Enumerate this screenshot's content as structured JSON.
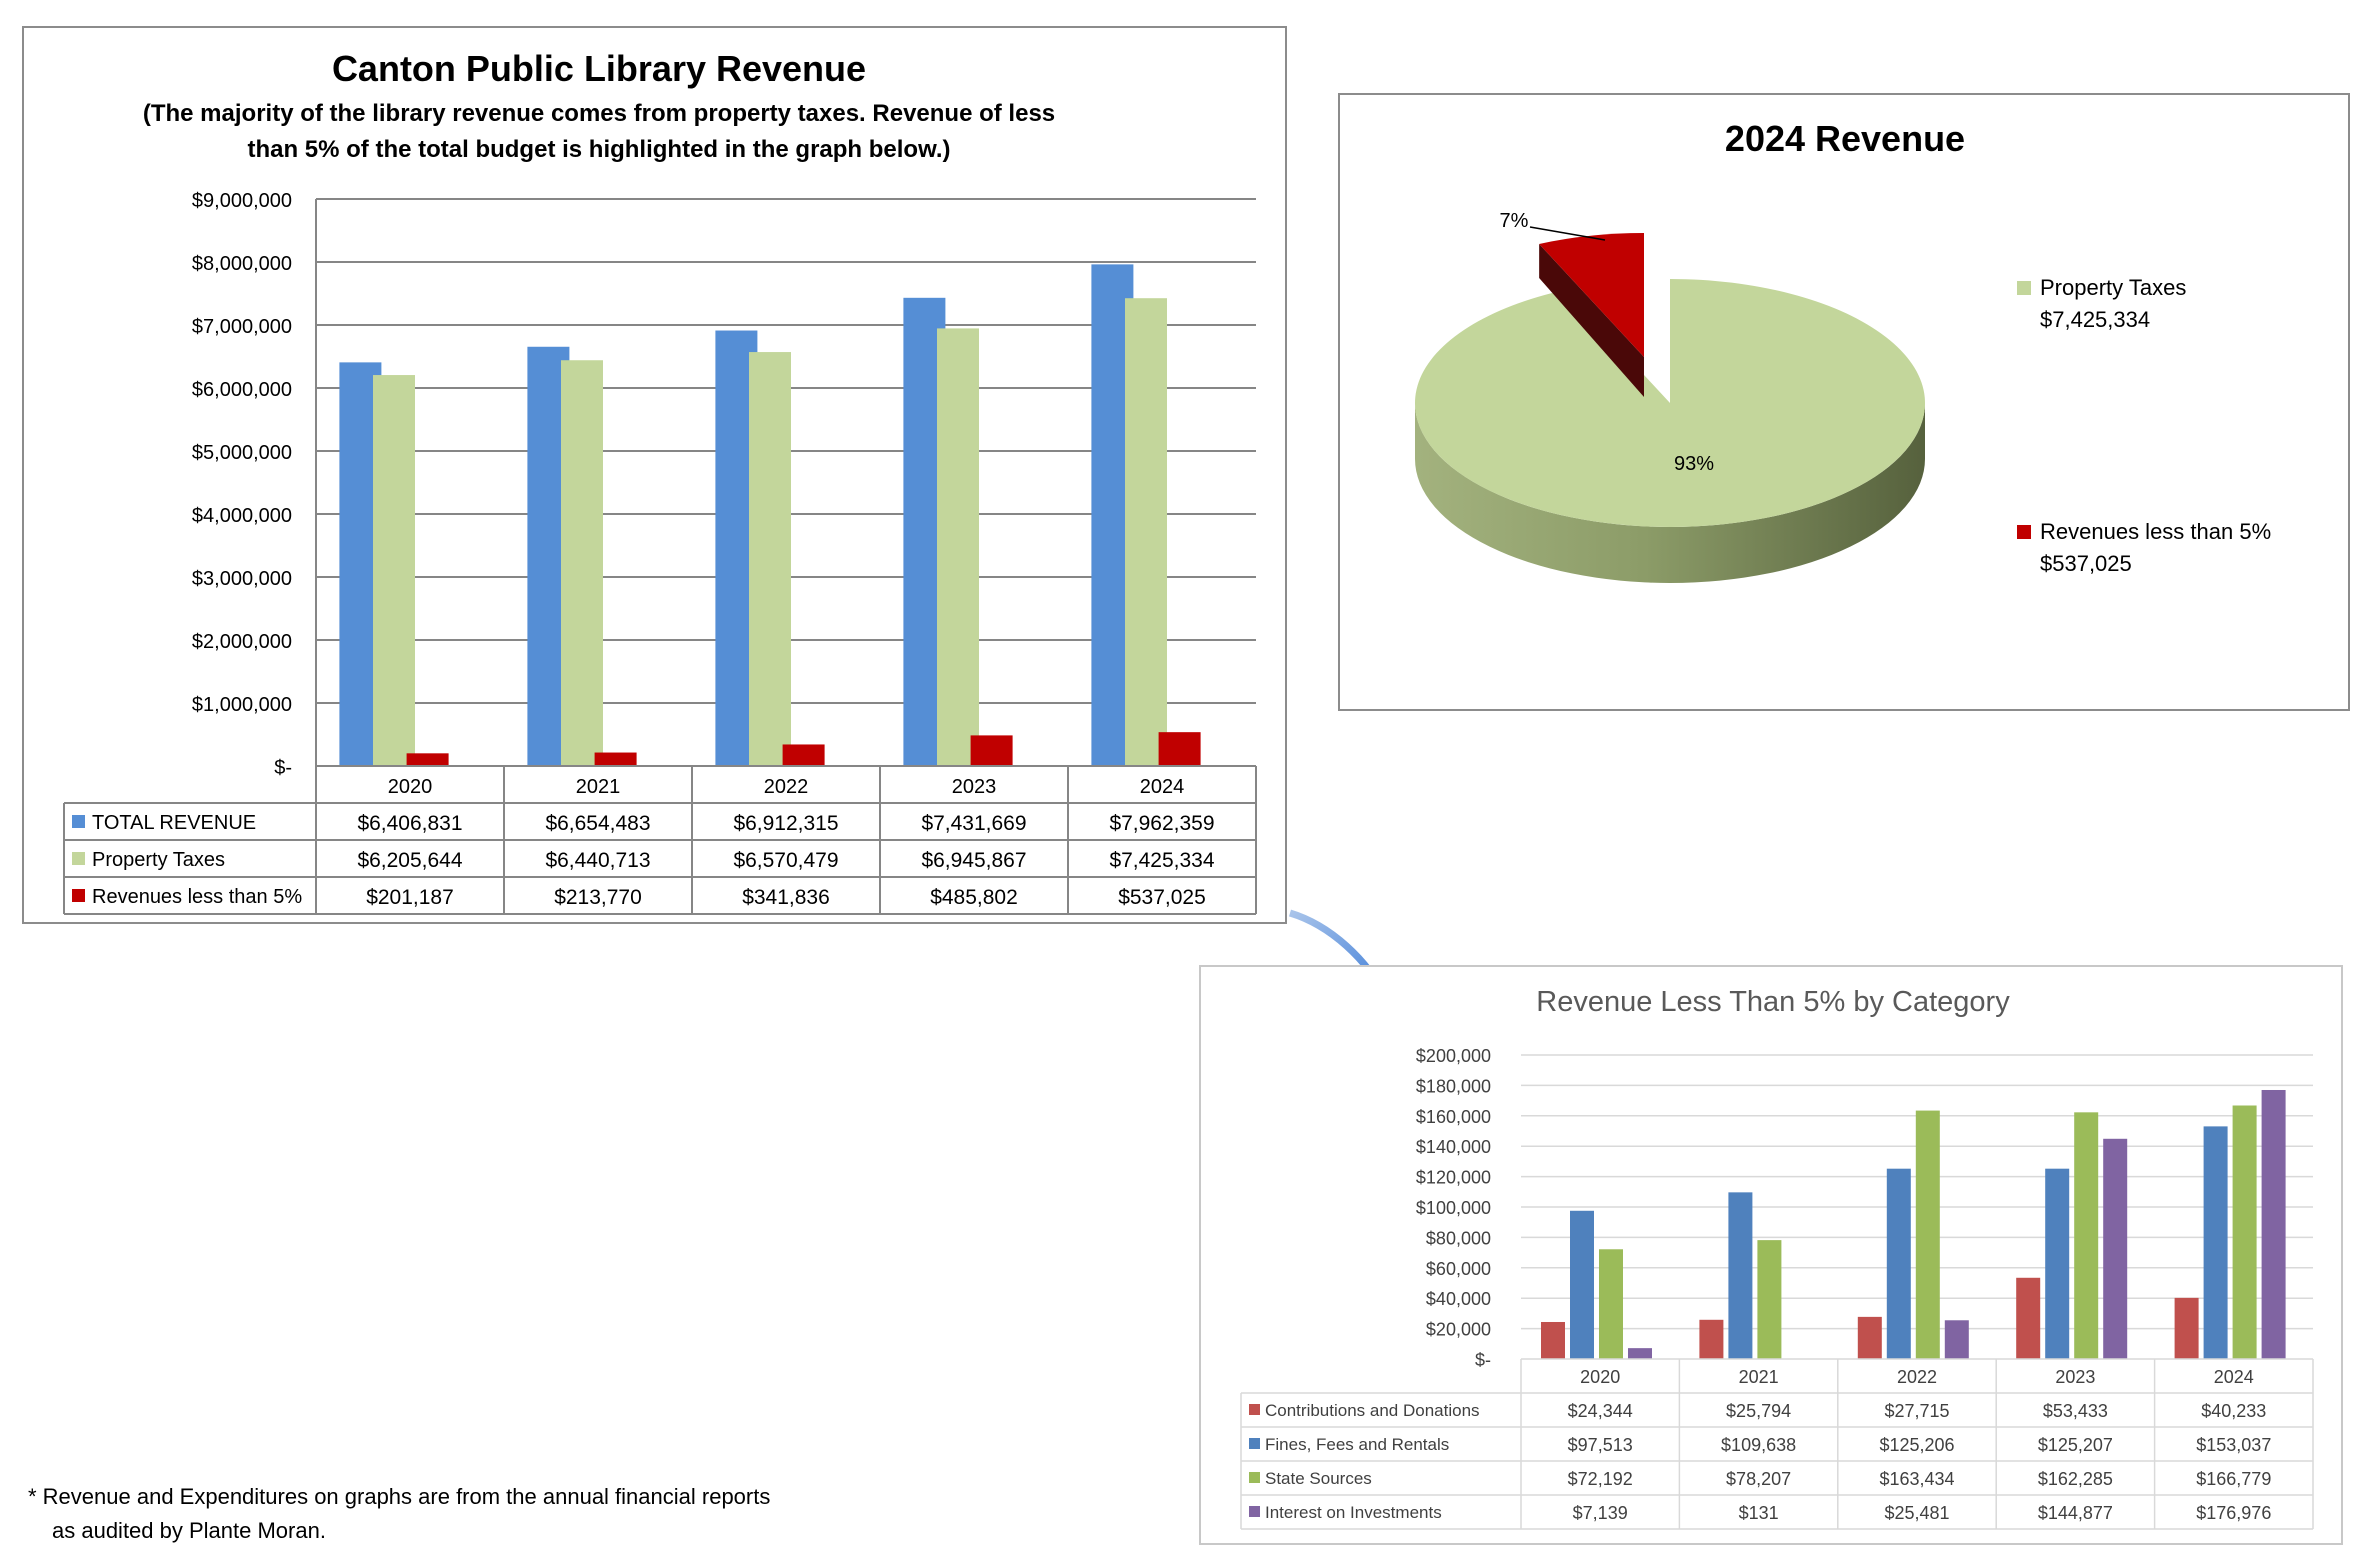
{
  "chart_data": [
    {
      "type": "bar",
      "title": "Canton Public Library Revenue",
      "subtitle": [
        "(The majority of the library revenue comes from property taxes. Revenue of less",
        "than 5% of the total budget is highlighted in the graph below.)"
      ],
      "categories": [
        "2020",
        "2021",
        "2022",
        "2023",
        "2024"
      ],
      "ylim": [
        0,
        9000000
      ],
      "y_ticks": [
        "$-",
        "$1,000,000",
        "$2,000,000",
        "$3,000,000",
        "$4,000,000",
        "$5,000,000",
        "$6,000,000",
        "$7,000,000",
        "$8,000,000",
        "$9,000,000"
      ],
      "grid": true,
      "series": [
        {
          "name": "TOTAL REVENUE",
          "color": "#558ed5",
          "values": [
            6406831,
            6654483,
            6912315,
            7431669,
            7962359
          ],
          "labels": [
            "$6,406,831",
            "$6,654,483",
            "$6,912,315",
            "$7,431,669",
            "$7,962,359"
          ]
        },
        {
          "name": "Property Taxes",
          "color": "#c3d69b",
          "values": [
            6205644,
            6440713,
            6570479,
            6945867,
            7425334
          ],
          "labels": [
            "$6,205,644",
            "$6,440,713",
            "$6,570,479",
            "$6,945,867",
            "$7,425,334"
          ]
        },
        {
          "name": "Revenues less than 5%",
          "color": "#c00000",
          "values": [
            201187,
            213770,
            341836,
            485802,
            537025
          ],
          "labels": [
            "$201,187",
            "$213,770",
            "$341,836",
            "$485,802",
            "$537,025"
          ]
        }
      ]
    },
    {
      "type": "pie",
      "title": "2024 Revenue",
      "legend_position": "right",
      "slices": [
        {
          "name": "Property Taxes",
          "value": 7425334,
          "value_label": "$7,425,334",
          "percent_label": "93%",
          "color": "#c3d69b"
        },
        {
          "name": "Revenues less than 5%",
          "value": 537025,
          "value_label": "$537,025",
          "percent_label": "7%",
          "color": "#c00000"
        }
      ]
    },
    {
      "type": "bar",
      "title": "Revenue Less Than 5% by Category",
      "categories": [
        "2020",
        "2021",
        "2022",
        "2023",
        "2024"
      ],
      "ylim": [
        0,
        200000
      ],
      "y_ticks": [
        "$-",
        "$20,000",
        "$40,000",
        "$60,000",
        "$80,000",
        "$100,000",
        "$120,000",
        "$140,000",
        "$160,000",
        "$180,000",
        "$200,000"
      ],
      "grid": true,
      "series": [
        {
          "name": "Contributions and Donations",
          "color": "#c0504d",
          "values": [
            24344,
            25794,
            27715,
            53433,
            40233
          ],
          "labels": [
            "$24,344",
            "$25,794",
            "$27,715",
            "$53,433",
            "$40,233"
          ]
        },
        {
          "name": "Fines, Fees and Rentals",
          "color": "#4f81bd",
          "values": [
            97513,
            109638,
            125206,
            125207,
            153037
          ],
          "labels": [
            "$97,513",
            "$109,638",
            "$125,206",
            "$125,207",
            "$153,037"
          ]
        },
        {
          "name": "State Sources",
          "color": "#9bbb59",
          "values": [
            72192,
            78207,
            163434,
            162285,
            166779
          ],
          "labels": [
            "$72,192",
            "$78,207",
            "$163,434",
            "$162,285",
            "$166,779"
          ]
        },
        {
          "name": "Interest on Investments",
          "color": "#8064a2",
          "values": [
            7139,
            131,
            25481,
            144877,
            176976
          ],
          "labels": [
            "$7,139",
            "$131",
            "$25,481",
            "$144,877",
            "$176,976"
          ]
        }
      ]
    }
  ],
  "footnote": [
    "* Revenue and Expenditures on graphs are from the annual financial reports",
    "as audited by Plante Moran."
  ]
}
